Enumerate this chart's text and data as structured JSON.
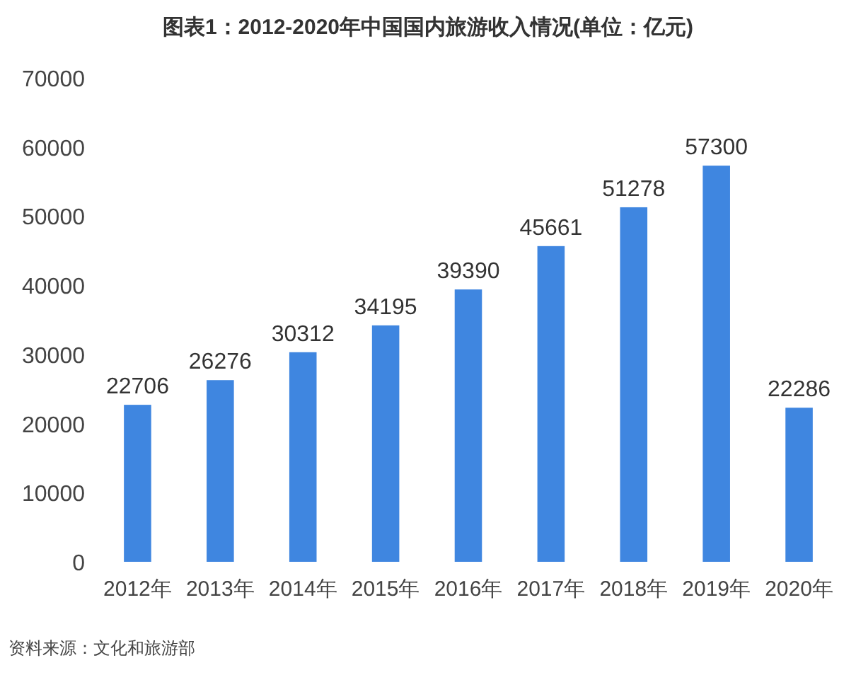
{
  "chart_data": {
    "type": "bar",
    "title": "图表1：2012-2020年中国国内旅游收入情况(单位：亿元)",
    "categories": [
      "2012年",
      "2013年",
      "2014年",
      "2015年",
      "2016年",
      "2017年",
      "2018年",
      "2019年",
      "2020年"
    ],
    "values": [
      22706,
      26276,
      30312,
      34195,
      39390,
      45661,
      51278,
      57300,
      22286
    ],
    "color": "#3f86e0",
    "ylim": [
      0,
      70000
    ],
    "yticks": [
      0,
      10000,
      20000,
      30000,
      40000,
      50000,
      60000,
      70000
    ],
    "data_labels": true,
    "grid": false,
    "annotations": [
      "资料来源：文化和旅游部"
    ]
  }
}
